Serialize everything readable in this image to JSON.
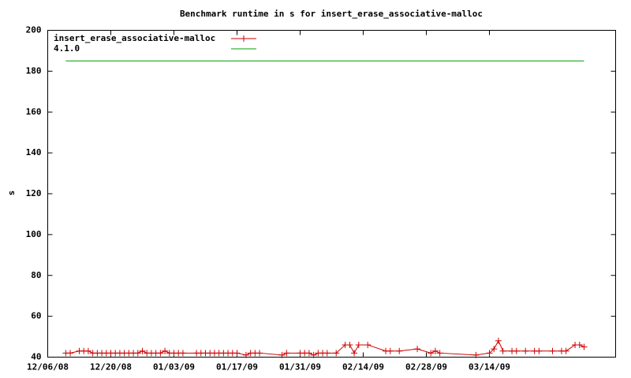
{
  "chart_data": {
    "type": "line",
    "title": "Benchmark runtime in s for insert_erase_associative-malloc",
    "y_label": "s",
    "xlim": [
      "12/06/08",
      "04/11/09"
    ],
    "xticks": [
      "12/06/08",
      "12/20/08",
      "01/03/09",
      "01/17/09",
      "01/31/09",
      "02/14/09",
      "02/28/09",
      "03/14/09"
    ],
    "ylim": [
      40,
      200
    ],
    "yticks": [
      40,
      60,
      80,
      100,
      120,
      140,
      160,
      180,
      200
    ],
    "grid": false,
    "legend": "top-left",
    "series": [
      {
        "name": "insert_erase_associative-malloc",
        "color": "#cc0000",
        "marker": "+",
        "x": [
          "12/10/08",
          "12/11/08",
          "12/13/08",
          "12/14/08",
          "12/15/08",
          "12/16/08",
          "12/17/08",
          "12/18/08",
          "12/19/08",
          "12/20/08",
          "12/21/08",
          "12/22/08",
          "12/23/08",
          "12/24/08",
          "12/25/08",
          "12/26/08",
          "12/27/08",
          "12/28/08",
          "12/29/08",
          "12/30/08",
          "12/31/08",
          "01/01/09",
          "01/02/09",
          "01/03/09",
          "01/04/09",
          "01/05/09",
          "01/08/09",
          "01/09/09",
          "01/10/09",
          "01/11/09",
          "01/12/09",
          "01/13/09",
          "01/14/09",
          "01/15/09",
          "01/16/09",
          "01/17/09",
          "01/19/09",
          "01/20/09",
          "01/21/09",
          "01/22/09",
          "01/27/09",
          "01/28/09",
          "01/31/09",
          "02/01/09",
          "02/02/09",
          "02/03/09",
          "02/04/09",
          "02/05/09",
          "02/06/09",
          "02/08/09",
          "02/10/09",
          "02/11/09",
          "02/12/09",
          "02/13/09",
          "02/15/09",
          "02/19/09",
          "02/20/09",
          "02/22/09",
          "02/26/09",
          "03/01/09",
          "03/02/09",
          "03/03/09",
          "03/11/09",
          "03/14/09",
          "03/15/09",
          "03/16/09",
          "03/17/09",
          "03/19/09",
          "03/20/09",
          "03/22/09",
          "03/24/09",
          "03/25/09",
          "03/28/09",
          "03/30/09",
          "03/31/09",
          "04/02/09",
          "04/03/09",
          "04/04/09"
        ],
        "values": [
          42,
          42,
          43,
          43,
          43,
          42,
          42,
          42,
          42,
          42,
          42,
          42,
          42,
          42,
          42,
          42,
          43,
          42,
          42,
          42,
          42,
          43,
          42,
          42,
          42,
          42,
          42,
          42,
          42,
          42,
          42,
          42,
          42,
          42,
          42,
          42,
          41,
          42,
          42,
          42,
          41,
          42,
          42,
          42,
          42,
          41,
          42,
          42,
          42,
          42,
          46,
          46,
          42,
          46,
          46,
          43,
          43,
          43,
          44,
          42,
          43,
          42,
          41,
          42,
          44,
          48,
          43,
          43,
          43,
          43,
          43,
          43,
          43,
          43,
          43,
          46,
          46,
          45
        ]
      },
      {
        "name": "4.1.0",
        "color": "#00a000",
        "x": [
          "12/10/08",
          "04/04/09"
        ],
        "values": [
          185,
          185
        ]
      }
    ]
  }
}
